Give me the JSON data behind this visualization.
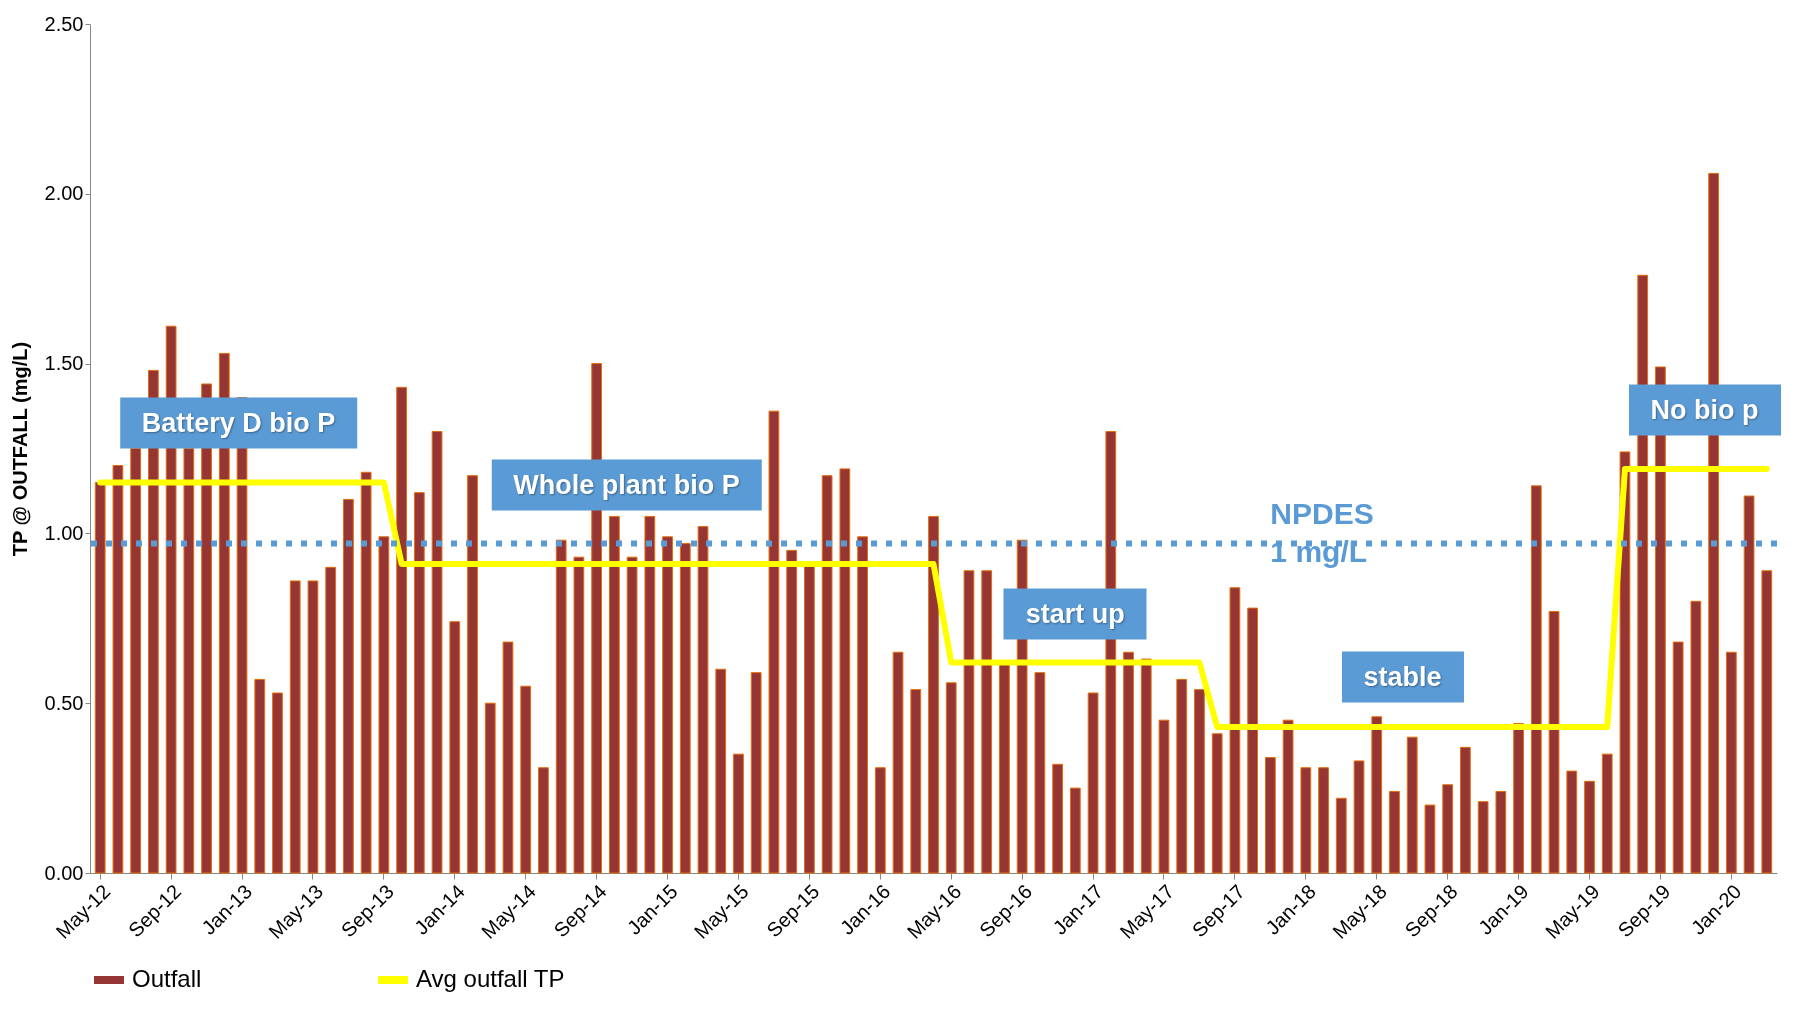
{
  "chart_data": {
    "type": "bar",
    "ylabel": "TP @ OUTFALL  (mg/L)",
    "categories": [
      "May-12",
      null,
      null,
      null,
      "Sep-12",
      null,
      null,
      null,
      "Jan-13",
      null,
      null,
      null,
      "May-13",
      null,
      null,
      null,
      "Sep-13",
      null,
      null,
      null,
      "Jan-14",
      null,
      null,
      null,
      "May-14",
      null,
      null,
      null,
      "Sep-14",
      null,
      null,
      null,
      "Jan-15",
      null,
      null,
      null,
      "May-15",
      null,
      null,
      null,
      "Sep-15",
      null,
      null,
      null,
      "Jan-16",
      null,
      null,
      null,
      "May-16",
      null,
      null,
      null,
      "Sep-16",
      null,
      null,
      null,
      "Jan-17",
      null,
      null,
      null,
      "May-17",
      null,
      null,
      null,
      "Sep-17",
      null,
      null,
      null,
      "Jan-18",
      null,
      null,
      null,
      "May-18",
      null,
      null,
      null,
      "Sep-18",
      null,
      null,
      null,
      "Jan-19",
      null,
      null,
      null,
      "May-19",
      null,
      null,
      null,
      "Sep-19",
      null,
      null,
      null,
      "Jan-20",
      null,
      null
    ],
    "series": [
      {
        "name": "Outfall",
        "type": "bar",
        "color": "#963634",
        "values": [
          1.15,
          1.2,
          1.25,
          1.48,
          1.61,
          1.25,
          1.44,
          1.53,
          1.4,
          0.57,
          0.53,
          0.86,
          0.86,
          0.9,
          1.1,
          1.18,
          0.99,
          1.43,
          1.12,
          1.3,
          0.74,
          1.17,
          0.5,
          0.68,
          0.55,
          0.31,
          0.98,
          0.93,
          1.5,
          1.05,
          0.93,
          1.05,
          0.99,
          0.97,
          1.02,
          0.6,
          0.35,
          0.59,
          1.36,
          0.95,
          0.91,
          1.17,
          1.19,
          0.99,
          0.31,
          0.65,
          0.54,
          1.05,
          0.56,
          0.89,
          0.89,
          0.62,
          0.98,
          0.59,
          0.32,
          0.25,
          0.53,
          1.3,
          0.65,
          0.63,
          0.45,
          0.57,
          0.54,
          0.41,
          0.84,
          0.78,
          0.34,
          0.45,
          0.31,
          0.31,
          0.22,
          0.33,
          0.46,
          0.24,
          0.4,
          0.2,
          0.26,
          0.37,
          0.21,
          0.24,
          0.44,
          1.14,
          0.77,
          0.3,
          0.27,
          0.35,
          1.24,
          1.76,
          1.49,
          0.68,
          0.8,
          2.06,
          0.65,
          1.11,
          0.89
        ]
      },
      {
        "name": "Avg outfall TP",
        "type": "line",
        "color": "#ffff00",
        "values": [
          1.15,
          1.15,
          1.15,
          1.15,
          1.15,
          1.15,
          1.15,
          1.15,
          1.15,
          1.15,
          1.15,
          1.15,
          1.15,
          1.15,
          1.15,
          1.15,
          1.15,
          0.91,
          0.91,
          0.91,
          0.91,
          0.91,
          0.91,
          0.91,
          0.91,
          0.91,
          0.91,
          0.91,
          0.91,
          0.91,
          0.91,
          0.91,
          0.91,
          0.91,
          0.91,
          0.91,
          0.91,
          0.91,
          0.91,
          0.91,
          0.91,
          0.91,
          0.91,
          0.91,
          0.91,
          0.91,
          0.91,
          0.91,
          0.62,
          0.62,
          0.62,
          0.62,
          0.62,
          0.62,
          0.62,
          0.62,
          0.62,
          0.62,
          0.62,
          0.62,
          0.62,
          0.62,
          0.62,
          0.43,
          0.43,
          0.43,
          0.43,
          0.43,
          0.43,
          0.43,
          0.43,
          0.43,
          0.43,
          0.43,
          0.43,
          0.43,
          0.43,
          0.43,
          0.43,
          0.43,
          0.43,
          0.43,
          0.43,
          0.43,
          0.43,
          0.43,
          1.19,
          1.19,
          1.19,
          1.19,
          1.19,
          1.19,
          1.19,
          1.19,
          1.19
        ]
      }
    ],
    "ylim": [
      0,
      2.5
    ],
    "yticks": [
      {
        "value": 0,
        "label": "0.00"
      },
      {
        "value": 0.5,
        "label": "0.50"
      },
      {
        "value": 1,
        "label": "1.00"
      },
      {
        "value": 1.5,
        "label": "1.50"
      },
      {
        "value": 2,
        "label": "2.00"
      },
      {
        "value": 2.5,
        "label": "2.50"
      }
    ],
    "ref_lines": [
      {
        "axis": "y",
        "value": 0.97,
        "label": "NPDES\n1 mg/L",
        "color": "#5b9bd5",
        "line_style": "dotted"
      }
    ],
    "annotations": [
      "Battery D bio P",
      "Whole plant bio P",
      "start up",
      "stable",
      "No bio p"
    ],
    "grid": false,
    "legend": "bottom"
  }
}
